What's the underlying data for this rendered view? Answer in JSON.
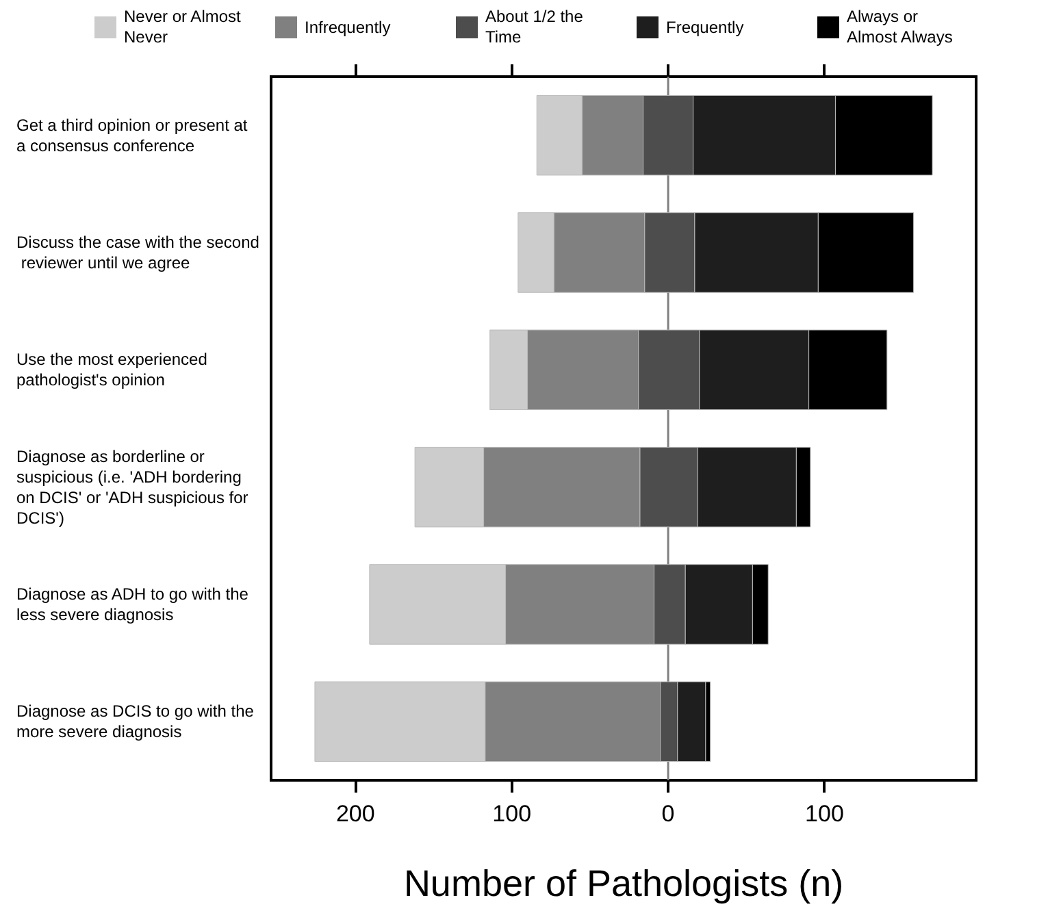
{
  "chart_data": {
    "type": "bar",
    "orientation": "horizontal",
    "xlabel": "Number of Pathologists (n)",
    "categories": [
      "Get a third opinion or present at a consensus conference",
      "Discuss the case with the second reviewer until we agree",
      "Use the most experienced pathologist's opinion",
      "Diagnose as borderline or suspicious (i.e. 'ADH bordering on DCIS' or 'ADH suspicious for DCIS')",
      "Diagnose as ADH to go with the less severe diagnosis",
      "Diagnose as DCIS to go with the more severe diagnosis"
    ],
    "series": [
      {
        "name": "Never or Almost Never",
        "color": "#cccccc",
        "base": [
          -84,
          -96,
          -114,
          -162,
          -191,
          -226
        ],
        "values": [
          29,
          23,
          24,
          44,
          87,
          109
        ]
      },
      {
        "name": "Infrequently",
        "color": "#808080",
        "base": [
          -55,
          -73,
          -90,
          -118,
          -104,
          -117
        ],
        "values": [
          39,
          58,
          71,
          100,
          95,
          112
        ]
      },
      {
        "name": "About 1/2 the Time",
        "color": "#4d4d4d",
        "base": [
          -16,
          -15,
          -19,
          -18,
          -9,
          -5
        ],
        "values": [
          32,
          32,
          39,
          37,
          20,
          11
        ]
      },
      {
        "name": "Frequently",
        "color": "#1e1e1e",
        "base": [
          16,
          17,
          20,
          19,
          11,
          6
        ],
        "values": [
          91,
          79,
          70,
          63,
          43,
          18
        ]
      },
      {
        "name": "Always or Almost Always",
        "color": "#000000",
        "base": [
          107,
          96,
          90,
          82,
          54,
          24
        ],
        "values": [
          62,
          61,
          50,
          9,
          10,
          3
        ]
      }
    ],
    "xlim": [
      -254,
      197
    ],
    "xticks": [
      {
        "value": -200,
        "label": "200"
      },
      {
        "value": -100,
        "label": "100"
      },
      0,
      100
    ],
    "ref_lines": [
      {
        "axis": "x",
        "value": 0,
        "color": "#808080"
      }
    ],
    "grid": false,
    "legend": "top"
  }
}
